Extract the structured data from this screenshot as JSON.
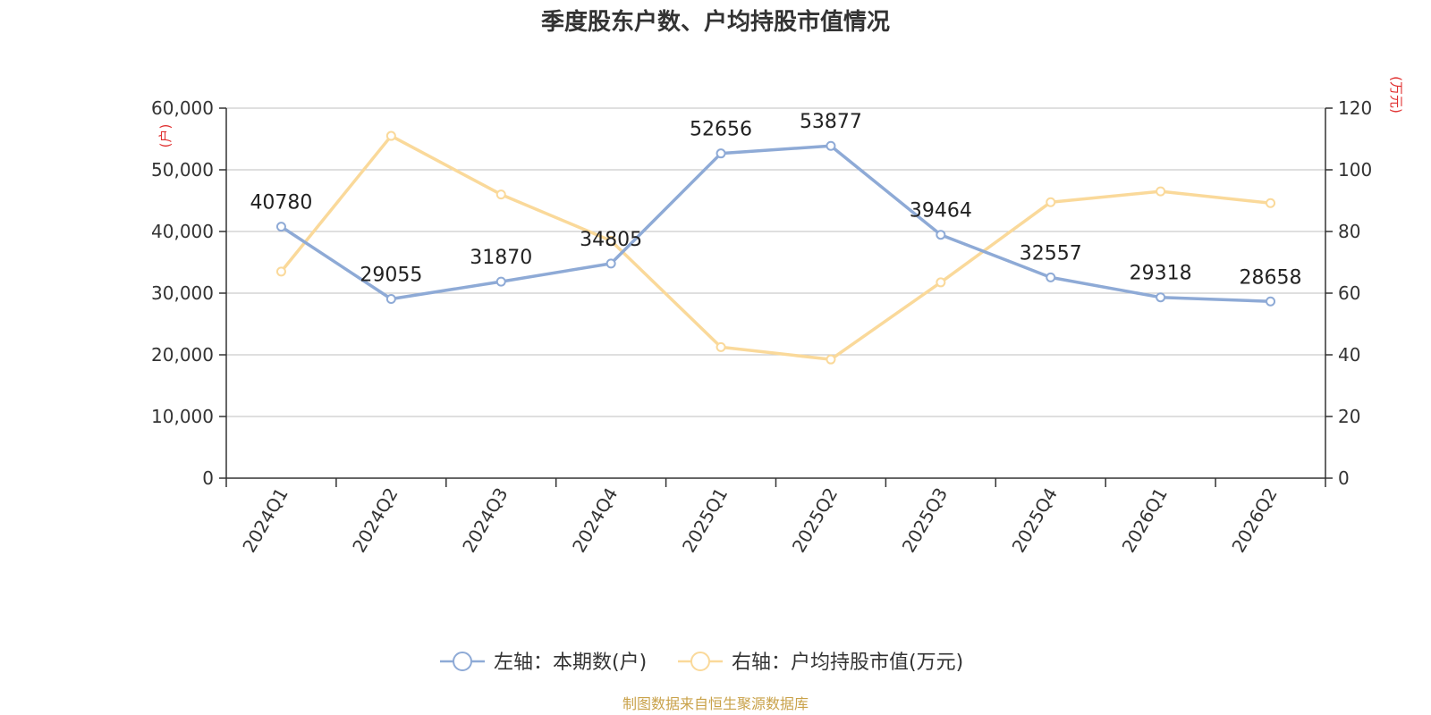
{
  "chart_data": {
    "type": "line",
    "title": "季度股东户数、户均持股市值情况",
    "categories": [
      "2024Q1",
      "2024Q2",
      "2024Q3",
      "2024Q4",
      "2025Q1",
      "2025Q2",
      "2025Q3",
      "2025Q4",
      "2026Q1",
      "2026Q2"
    ],
    "y_left": {
      "unit": "(户)",
      "ylim": [
        0,
        60000
      ],
      "ticks": [
        "0",
        "10,000",
        "20,000",
        "30,000",
        "40,000",
        "50,000",
        "60,000"
      ]
    },
    "y_right": {
      "unit": "(万元)",
      "ylim": [
        0,
        120
      ],
      "ticks": [
        "0",
        "20",
        "40",
        "60",
        "80",
        "100",
        "120"
      ]
    },
    "series": [
      {
        "name": "左轴：本期数(户)",
        "axis": "left",
        "color": "#8eaad6",
        "values": [
          40780,
          29055,
          31870,
          34805,
          52656,
          53877,
          39464,
          32557,
          29318,
          28658
        ],
        "labels": [
          "40780",
          "29055",
          "31870",
          "34805",
          "52656",
          "53877",
          "39464",
          "32557",
          "29318",
          "28658"
        ]
      },
      {
        "name": "右轴：户均持股市值(万元)",
        "axis": "right",
        "color": "#fad99a",
        "values": [
          67,
          111,
          92,
          77,
          42.5,
          38.5,
          63.5,
          89.5,
          93,
          89.2
        ]
      }
    ],
    "grid": true,
    "legend": "bottom-center",
    "source": "制图数据来自恒生聚源数据库"
  }
}
